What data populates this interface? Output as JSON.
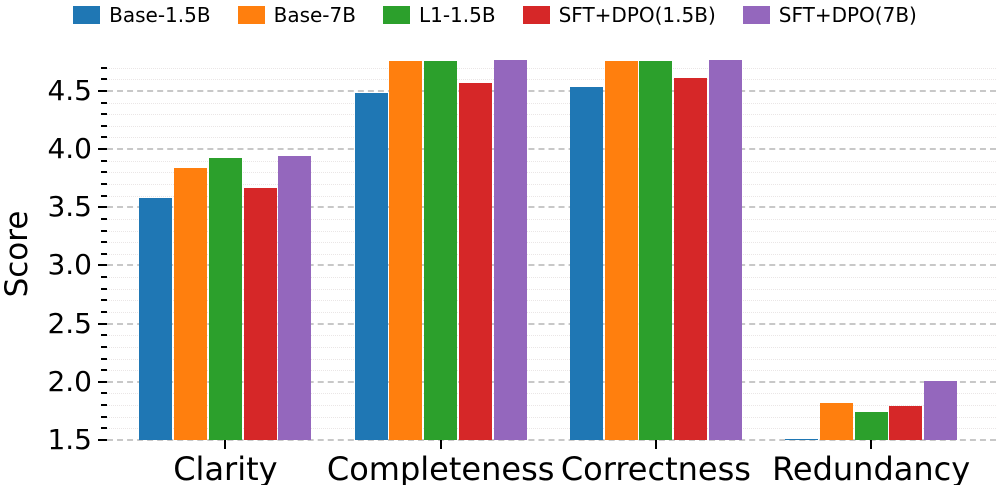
{
  "chart_data": {
    "type": "bar",
    "title": "",
    "xlabel": "",
    "ylabel": "Score",
    "categories": [
      "Clarity",
      "Completeness",
      "Correctness",
      "Redundancy"
    ],
    "series": [
      {
        "name": "Base-1.5B",
        "color": "#1f77b4",
        "values": [
          3.58,
          4.48,
          4.53,
          1.51
        ]
      },
      {
        "name": "Base-7B",
        "color": "#ff7f0e",
        "values": [
          3.84,
          4.76,
          4.76,
          1.82
        ]
      },
      {
        "name": "L1-1.5B",
        "color": "#2ca02c",
        "values": [
          3.92,
          4.76,
          4.76,
          1.74
        ]
      },
      {
        "name": "SFT+DPO(1.5B)",
        "color": "#d62728",
        "values": [
          3.67,
          4.57,
          4.61,
          1.79
        ]
      },
      {
        "name": "SFT+DPO(7B)",
        "color": "#9467bd",
        "values": [
          3.94,
          4.77,
          4.77,
          2.01
        ]
      }
    ],
    "ylim": [
      1.5,
      4.8
    ],
    "yticks": [
      1.5,
      2.0,
      2.5,
      3.0,
      3.5,
      4.0,
      4.5
    ],
    "minor_tick_step": 0.1,
    "grid": "major-dashed-and-minor-dotted",
    "legend_position": "top",
    "text_color": "#000000",
    "major_grid_color": "#c8c8c8",
    "minor_grid_color": "#eae6e6"
  }
}
